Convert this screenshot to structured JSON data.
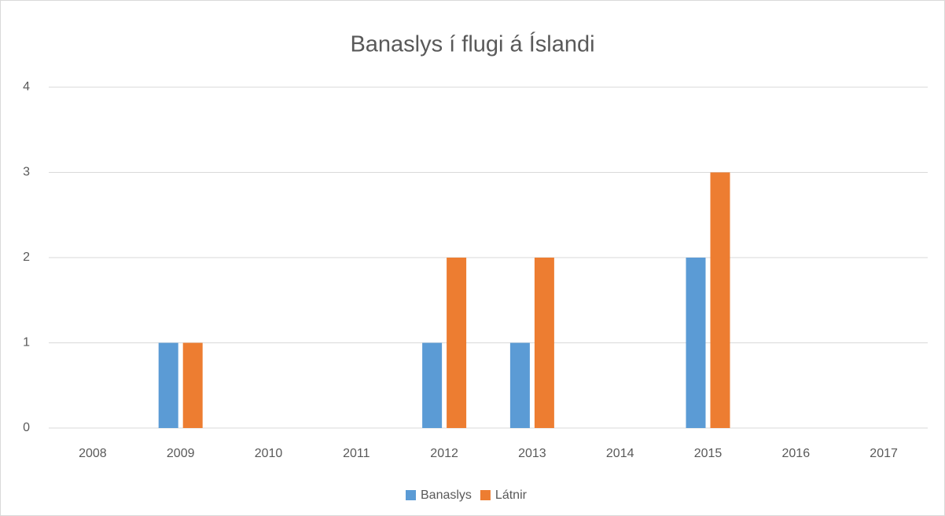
{
  "chart_data": {
    "type": "bar",
    "title": "Banaslys í flugi á Íslandi",
    "categories": [
      "2008",
      "2009",
      "2010",
      "2011",
      "2012",
      "2013",
      "2014",
      "2015",
      "2016",
      "2017"
    ],
    "series": [
      {
        "name": "Banaslys",
        "color": "#5b9bd5",
        "values": [
          0,
          1,
          0,
          0,
          1,
          1,
          0,
          2,
          0,
          0
        ]
      },
      {
        "name": "Látnir",
        "color": "#ed7d31",
        "values": [
          0,
          1,
          0,
          0,
          2,
          2,
          0,
          3,
          0,
          0
        ]
      }
    ],
    "ylim": [
      0,
      4
    ],
    "yticks": [
      0,
      1,
      2,
      3,
      4
    ],
    "grid": true,
    "legend": "bottom"
  }
}
